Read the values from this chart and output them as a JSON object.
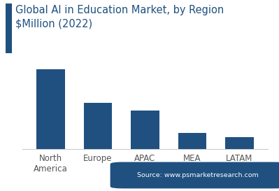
{
  "title_line1": "Global AI in Education Market, by Region",
  "title_line2": "$Million (2022)",
  "categories": [
    "North\nAmerica",
    "Europe",
    "APAC",
    "MEA",
    "LATAM"
  ],
  "values": [
    100,
    58,
    48,
    20,
    15
  ],
  "bar_color": "#1f5080",
  "background_color": "#ffffff",
  "title_color": "#1f5080",
  "title_fontsize": 10.5,
  "source_text": "Source: www.psmarketresearch.com",
  "source_bg": "#1f5080",
  "source_text_color": "#ffffff",
  "accent_bar_color": "#1f5080",
  "ylim": [
    0,
    115
  ],
  "bar_width": 0.6
}
